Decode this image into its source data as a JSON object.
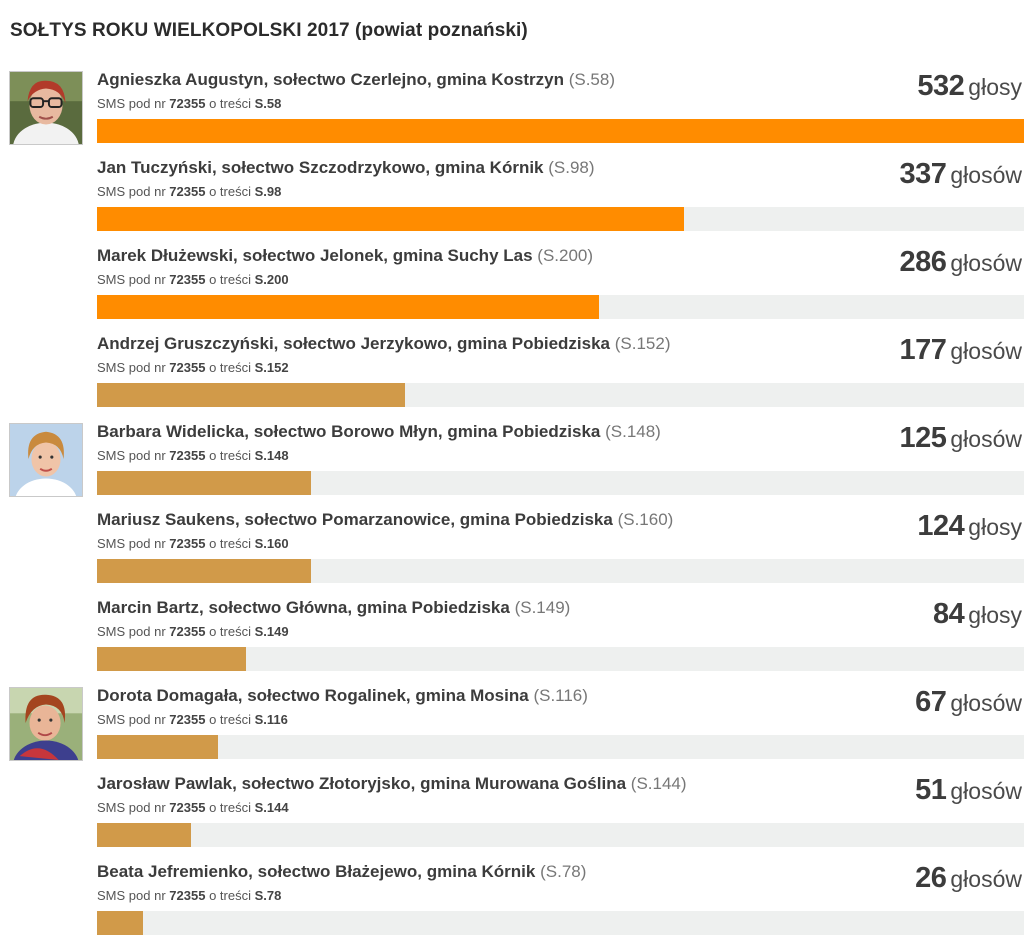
{
  "title": "SOŁTYS ROKU WIELKOPOLSKI 2017 (powiat poznański)",
  "sms": {
    "prefix": "SMS pod nr",
    "number": "72355",
    "middle": "o treści"
  },
  "colors": {
    "bar_top": "#ff8c00",
    "bar_rest": "#d19a49",
    "bar_track": "#eef0ef"
  },
  "candidates": [
    {
      "name": "Agnieszka Augustyn, sołectwo Czerlejno, gmina Kostrzyn",
      "code": "(S.58)",
      "sms_code": "S.58",
      "votes": "532",
      "votes_word": "głosy",
      "share": 1.0,
      "tier": "top",
      "photo": "woman-glasses-photo"
    },
    {
      "name": "Jan Tuczyński, sołectwo Szczodrzykowo, gmina Kórnik",
      "code": "(S.98)",
      "sms_code": "S.98",
      "votes": "337",
      "votes_word": "głosów",
      "share": 0.633,
      "tier": "top",
      "photo": ""
    },
    {
      "name": "Marek Dłużewski, sołectwo Jelonek, gmina Suchy Las",
      "code": "(S.200)",
      "sms_code": "S.200",
      "votes": "286",
      "votes_word": "głosów",
      "share": 0.541,
      "tier": "top",
      "photo": ""
    },
    {
      "name": "Andrzej Gruszczyński, sołectwo Jerzykowo, gmina Pobiedziska",
      "code": "(S.152)",
      "sms_code": "S.152",
      "votes": "177",
      "votes_word": "głosów",
      "share": 0.332,
      "tier": "rest",
      "photo": ""
    },
    {
      "name": "Barbara Widelicka, sołectwo Borowo Młyn, gmina Pobiedziska",
      "code": "(S.148)",
      "sms_code": "S.148",
      "votes": "125",
      "votes_word": "głosów",
      "share": 0.231,
      "tier": "rest",
      "photo": "woman-blonde-photo"
    },
    {
      "name": "Mariusz Saukens, sołectwo Pomarzanowice, gmina Pobiedziska",
      "code": "(S.160)",
      "sms_code": "S.160",
      "votes": "124",
      "votes_word": "głosy",
      "share": 0.231,
      "tier": "rest",
      "photo": ""
    },
    {
      "name": "Marcin Bartz, sołectwo Główna, gmina Pobiedziska",
      "code": "(S.149)",
      "sms_code": "S.149",
      "votes": "84",
      "votes_word": "głosy",
      "share": 0.161,
      "tier": "rest",
      "photo": ""
    },
    {
      "name": "Dorota Domagała, sołectwo Rogalinek, gmina Mosina",
      "code": "(S.116)",
      "sms_code": "S.116",
      "votes": "67",
      "votes_word": "głosów",
      "share": 0.131,
      "tier": "rest",
      "photo": "woman-redhair-photo"
    },
    {
      "name": "Jarosław Pawlak, sołectwo Złotoryjsko, gmina Murowana Goślina",
      "code": "(S.144)",
      "sms_code": "S.144",
      "votes": "51",
      "votes_word": "głosów",
      "share": 0.101,
      "tier": "rest",
      "photo": ""
    },
    {
      "name": "Beata Jefremienko, sołectwo Błażejewo, gmina Kórnik",
      "code": "(S.78)",
      "sms_code": "S.78",
      "votes": "26",
      "votes_word": "głosów",
      "share": 0.05,
      "tier": "rest",
      "photo": ""
    }
  ]
}
